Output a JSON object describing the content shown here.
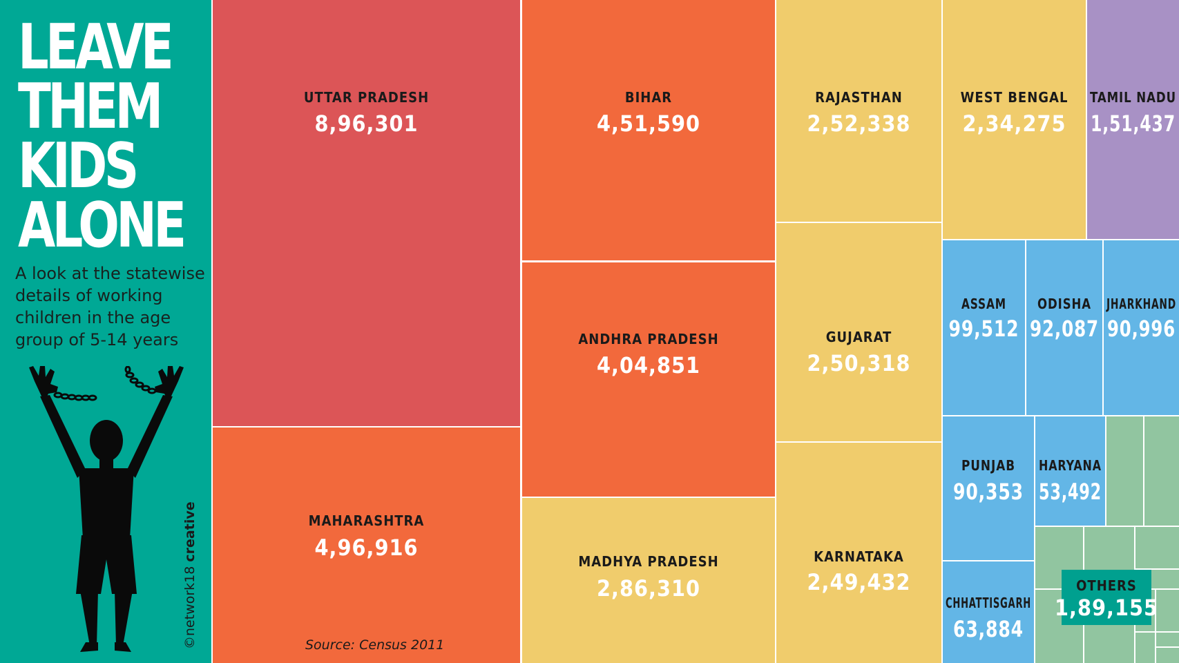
{
  "header": {
    "title_lines": [
      "LEAVE",
      "THEM",
      "KIDS",
      "ALONE"
    ],
    "subtitle": "A look at the statewise details of working children in the age group of 5-14 years",
    "credit_prefix": "©network18",
    "credit_suffix": "creative"
  },
  "source": "Source: Census 2011",
  "colors": {
    "sidebar": "#00a895",
    "red": "#dc5557",
    "orange": "#f2693c",
    "yellow": "#f0cc6c",
    "purple": "#a891c5",
    "blue": "#63b6e6",
    "green": "#91c5a0",
    "others_badge": "#00a08f"
  },
  "chart_data": {
    "type": "treemap",
    "title": "LEAVE THEM KIDS ALONE",
    "subtitle": "A look at the statewise details of working children in the age group of 5-14 years",
    "items": [
      {
        "name": "UTTAR PRADESH",
        "label": "8,96,301",
        "value": 896301,
        "color": "#dc5557"
      },
      {
        "name": "MAHARASHTRA",
        "label": "4,96,916",
        "value": 496916,
        "color": "#f2693c"
      },
      {
        "name": "BIHAR",
        "label": "4,51,590",
        "value": 451590,
        "color": "#f2693c"
      },
      {
        "name": "ANDHRA PRADESH",
        "label": "4,04,851",
        "value": 404851,
        "color": "#f2693c"
      },
      {
        "name": "MADHYA PRADESH",
        "label": "2,86,310",
        "value": 286310,
        "color": "#f0cc6c"
      },
      {
        "name": "RAJASTHAN",
        "label": "2,52,338",
        "value": 252338,
        "color": "#f0cc6c"
      },
      {
        "name": "GUJARAT",
        "label": "2,50,318",
        "value": 250318,
        "color": "#f0cc6c"
      },
      {
        "name": "KARNATAKA",
        "label": "2,49,432",
        "value": 249432,
        "color": "#f0cc6c"
      },
      {
        "name": "WEST BENGAL",
        "label": "2,34,275",
        "value": 234275,
        "color": "#f0cc6c"
      },
      {
        "name": "TAMIL NADU",
        "label": "1,51,437",
        "value": 151437,
        "color": "#a891c5"
      },
      {
        "name": "ASSAM",
        "label": "99,512",
        "value": 99512,
        "color": "#63b6e6"
      },
      {
        "name": "ODISHA",
        "label": "92,087",
        "value": 92087,
        "color": "#63b6e6"
      },
      {
        "name": "JHARKHAND",
        "label": "90,996",
        "value": 90996,
        "color": "#63b6e6"
      },
      {
        "name": "PUNJAB",
        "label": "90,353",
        "value": 90353,
        "color": "#63b6e6"
      },
      {
        "name": "HARYANA",
        "label": "53,492",
        "value": 53492,
        "color": "#63b6e6"
      },
      {
        "name": "CHHATTISGARH",
        "label": "63,884",
        "value": 63884,
        "color": "#63b6e6"
      },
      {
        "name": "OTHERS",
        "label": "1,89,155",
        "value": 189155,
        "color": "#91c5a0"
      }
    ]
  }
}
